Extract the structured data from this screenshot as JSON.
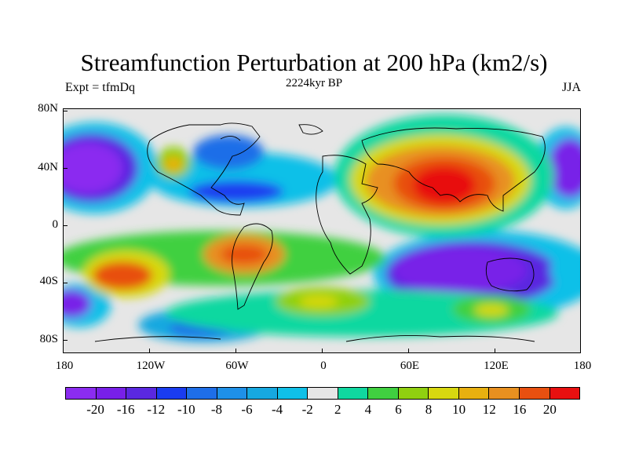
{
  "title": "Streamfunction Perturbation at 200 hPa (km2/s)",
  "left_label": "Expt = tfmDq",
  "center_label": "2224kyr BP",
  "right_label": "JJA",
  "lat_ticks": [
    "80N",
    "40N",
    "0",
    "40S",
    "80S"
  ],
  "lon_ticks": [
    "180",
    "120W",
    "60W",
    "0",
    "60E",
    "120E",
    "180"
  ],
  "legend": {
    "colors": [
      "#8b2cf0",
      "#7820e8",
      "#5a28e0",
      "#1a3cf0",
      "#1e6ee8",
      "#1e90e8",
      "#16a8e0",
      "#10c0e8",
      "#e6e6e6",
      "#10d8a0",
      "#40d040",
      "#90d010",
      "#d8d810",
      "#e8b010",
      "#e89020",
      "#e85010",
      "#e81010"
    ],
    "labels": [
      "-20",
      "-16",
      "-12",
      "-10",
      "-8",
      "-6",
      "-4",
      "-2",
      "2",
      "4",
      "6",
      "8",
      "10",
      "12",
      "16",
      "20"
    ]
  }
}
